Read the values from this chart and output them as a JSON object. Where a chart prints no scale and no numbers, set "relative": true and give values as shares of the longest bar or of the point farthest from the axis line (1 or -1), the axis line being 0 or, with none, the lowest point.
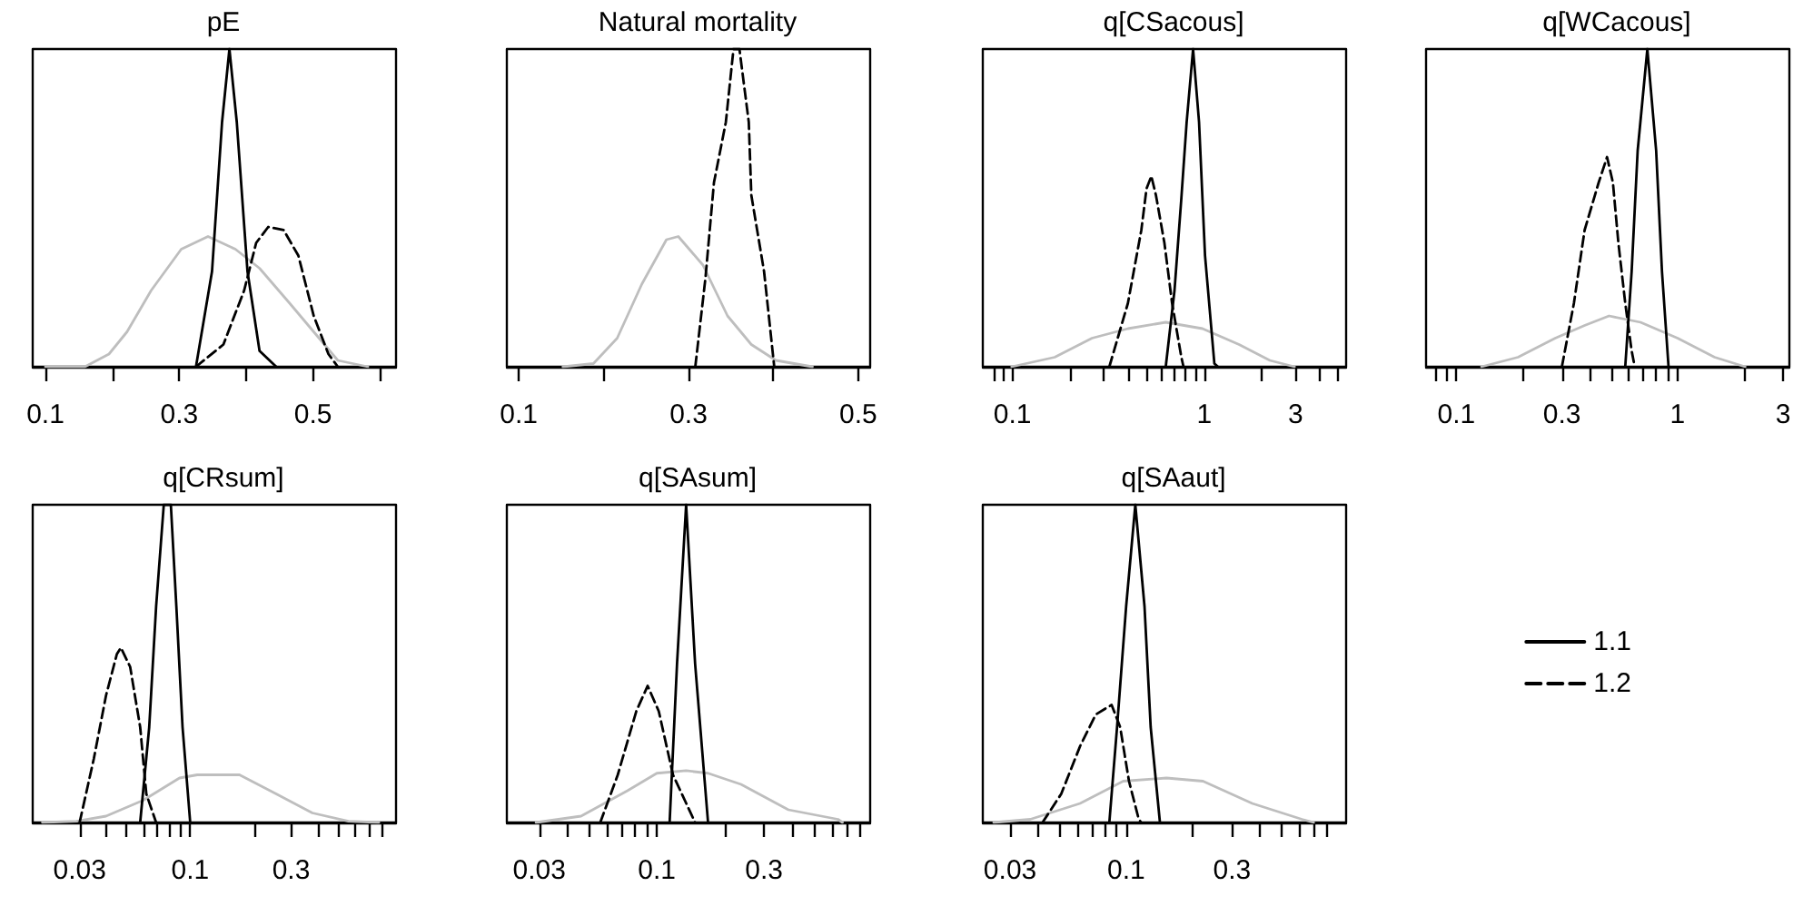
{
  "chart_data": [
    {
      "type": "line",
      "title": "pE",
      "relative": true,
      "tick_labels": "x",
      "xlim": [
        0.081,
        0.624
      ],
      "xticks": [
        0.1,
        {
          "value": 0.2,
          "label": null
        },
        0.3,
        {
          "value": 0.4,
          "label": null
        },
        0.5,
        {
          "value": 0.6,
          "label": null
        }
      ],
      "series": [
        {
          "color": "#bebebe",
          "line_style": "solid",
          "x": [
            0.1,
            0.159,
            0.195,
            0.222,
            0.258,
            0.303,
            0.343,
            0.384,
            0.42,
            0.465,
            0.501,
            0.537,
            0.582
          ],
          "values": [
            0,
            0,
            0.04,
            0.11,
            0.24,
            0.37,
            0.41,
            0.37,
            0.31,
            0.2,
            0.11,
            0.02,
            0
          ]
        },
        {
          "color": "#000000",
          "line_style": "solid",
          "x": [
            0.325,
            0.349,
            0.364,
            0.375,
            0.386,
            0.402,
            0.42,
            0.445
          ],
          "values": [
            0,
            0.3,
            0.77,
            1,
            0.77,
            0.3,
            0.05,
            0
          ]
        },
        {
          "color": "#000000",
          "line_style": "dashed",
          "x": [
            0.325,
            0.366,
            0.397,
            0.415,
            0.433,
            0.456,
            0.478,
            0.501,
            0.523,
            0.537
          ],
          "values": [
            0,
            0.07,
            0.24,
            0.39,
            0.44,
            0.43,
            0.35,
            0.16,
            0.04,
            0
          ]
        }
      ]
    },
    {
      "type": "line",
      "title": "Natural mortality",
      "relative": true,
      "tick_labels": "x",
      "xlim": [
        0.086,
        0.514
      ],
      "xticks": [
        0.1,
        {
          "value": 0.2,
          "label": null
        },
        0.3,
        {
          "value": 0.4,
          "label": null
        },
        0.5
      ],
      "series": [
        {
          "color": "#bebebe",
          "line_style": "solid",
          "x": [
            0.152,
            0.188,
            0.216,
            0.245,
            0.274,
            0.288,
            0.317,
            0.346,
            0.374,
            0.403,
            0.446
          ],
          "values": [
            0,
            0.01,
            0.09,
            0.26,
            0.4,
            0.41,
            0.32,
            0.16,
            0.07,
            0.02,
            0
          ]
        },
        {
          "color": "#000000",
          "line_style": "dashed",
          "x": [
            0.308,
            0.32,
            0.33,
            0.344,
            0.353,
            0.36,
            0.371,
            0.374,
            0.389,
            0.401
          ],
          "values": [
            0,
            0.28,
            0.58,
            0.77,
            1,
            1,
            0.77,
            0.54,
            0.3,
            0
          ]
        }
      ]
    },
    {
      "type": "line",
      "title": "q[CSacous]",
      "relative": true,
      "log": "x",
      "tick_labels": "x",
      "xlim": [
        0.07,
        5.5
      ],
      "xticks": [
        {
          "value": 0.08,
          "label": null
        },
        {
          "value": 0.09,
          "label": null
        },
        0.1,
        {
          "value": 0.2,
          "label": null
        },
        {
          "value": 0.3,
          "label": null
        },
        {
          "value": 0.4,
          "label": null
        },
        {
          "value": 0.5,
          "label": null
        },
        {
          "value": 0.6,
          "label": null
        },
        {
          "value": 0.7,
          "label": null
        },
        {
          "value": 0.8,
          "label": null
        },
        {
          "value": 0.9,
          "label": null
        },
        1,
        {
          "value": 2,
          "label": null
        },
        3,
        {
          "value": 4,
          "label": null
        },
        {
          "value": 5,
          "label": null
        }
      ],
      "series": [
        {
          "color": "#bebebe",
          "line_style": "solid",
          "x": [
            0.099,
            0.166,
            0.26,
            0.4,
            0.63,
            0.98,
            1.52,
            2.2,
            2.96
          ],
          "values": [
            0,
            0.03,
            0.09,
            0.12,
            0.14,
            0.12,
            0.07,
            0.02,
            0
          ]
        },
        {
          "color": "#000000",
          "line_style": "solid",
          "x": [
            0.63,
            0.7,
            0.76,
            0.81,
            0.875,
            0.94,
            1.01,
            1.13,
            1.18
          ],
          "values": [
            0,
            0.24,
            0.53,
            0.77,
            1,
            0.77,
            0.35,
            0.01,
            0
          ]
        },
        {
          "color": "#000000",
          "line_style": "dashed",
          "x": [
            0.32,
            0.4,
            0.47,
            0.5,
            0.53,
            0.56,
            0.62,
            0.68,
            0.76,
            0.78
          ],
          "values": [
            0,
            0.2,
            0.43,
            0.56,
            0.6,
            0.54,
            0.39,
            0.2,
            0.03,
            0
          ]
        }
      ]
    },
    {
      "type": "line",
      "title": "q[WCacous]",
      "relative": true,
      "log": "x",
      "tick_labels": "x",
      "xlim": [
        0.073,
        3.2
      ],
      "xticks": [
        {
          "value": 0.08,
          "label": null
        },
        {
          "value": 0.09,
          "label": null
        },
        0.1,
        {
          "value": 0.2,
          "label": null
        },
        0.3,
        {
          "value": 0.4,
          "label": null
        },
        {
          "value": 0.5,
          "label": null
        },
        {
          "value": 0.6,
          "label": null
        },
        {
          "value": 0.7,
          "label": null
        },
        {
          "value": 0.8,
          "label": null
        },
        {
          "value": 0.9,
          "label": null
        },
        1,
        {
          "value": 2,
          "label": null
        },
        3
      ],
      "series": [
        {
          "color": "#bebebe",
          "line_style": "solid",
          "x": [
            0.13,
            0.19,
            0.28,
            0.38,
            0.49,
            0.68,
            1.0,
            1.47,
            2.02
          ],
          "values": [
            0,
            0.03,
            0.09,
            0.13,
            0.16,
            0.14,
            0.09,
            0.03,
            0
          ]
        },
        {
          "color": "#000000",
          "line_style": "solid",
          "x": [
            0.58,
            0.62,
            0.66,
            0.73,
            0.8,
            0.85,
            0.91
          ],
          "values": [
            0,
            0.3,
            0.68,
            1,
            0.68,
            0.3,
            0
          ]
        },
        {
          "color": "#000000",
          "line_style": "dashed",
          "x": [
            0.3,
            0.34,
            0.38,
            0.44,
            0.48,
            0.51,
            0.54,
            0.58,
            0.62,
            0.64
          ],
          "values": [
            0,
            0.2,
            0.43,
            0.58,
            0.66,
            0.58,
            0.39,
            0.2,
            0.05,
            0
          ]
        }
      ]
    },
    {
      "type": "line",
      "title": "q[CRsum]",
      "relative": true,
      "log": "x",
      "tick_labels": "x",
      "xlim": [
        0.018,
        0.94
      ],
      "xticks": [
        0.03,
        {
          "value": 0.04,
          "label": null
        },
        {
          "value": 0.05,
          "label": null
        },
        {
          "value": 0.06,
          "label": null
        },
        {
          "value": 0.07,
          "label": null
        },
        {
          "value": 0.08,
          "label": null
        },
        {
          "value": 0.09,
          "label": null
        },
        0.1,
        {
          "value": 0.2,
          "label": null
        },
        0.3,
        {
          "value": 0.4,
          "label": null
        },
        {
          "value": 0.5,
          "label": null
        },
        {
          "value": 0.6,
          "label": null
        },
        {
          "value": 0.7,
          "label": null
        },
        {
          "value": 0.8,
          "label": null
        }
      ],
      "series": [
        {
          "color": "#bebebe",
          "line_style": "solid",
          "x": [
            0.02,
            0.029,
            0.04,
            0.06,
            0.089,
            0.108,
            0.171,
            0.255,
            0.378,
            0.56,
            0.78
          ],
          "values": [
            0,
            0.004,
            0.02,
            0.07,
            0.14,
            0.15,
            0.15,
            0.09,
            0.03,
            0.004,
            0
          ]
        },
        {
          "color": "#000000",
          "line_style": "solid",
          "x": [
            0.058,
            0.064,
            0.069,
            0.075,
            0.081,
            0.086,
            0.092,
            0.1
          ],
          "values": [
            0,
            0.3,
            0.68,
            1,
            1,
            0.68,
            0.3,
            0
          ]
        },
        {
          "color": "#000000",
          "line_style": "dashed",
          "x": [
            0.03,
            0.035,
            0.04,
            0.045,
            0.047,
            0.052,
            0.058,
            0.062,
            0.069
          ],
          "values": [
            0,
            0.2,
            0.4,
            0.53,
            0.55,
            0.49,
            0.3,
            0.09,
            0
          ]
        }
      ]
    },
    {
      "type": "line",
      "title": "q[SAsum]",
      "relative": true,
      "log": "x",
      "tick_labels": "x",
      "xlim": [
        0.0215,
        0.89
      ],
      "xticks": [
        0.03,
        {
          "value": 0.04,
          "label": null
        },
        {
          "value": 0.05,
          "label": null
        },
        {
          "value": 0.06,
          "label": null
        },
        {
          "value": 0.07,
          "label": null
        },
        {
          "value": 0.08,
          "label": null
        },
        {
          "value": 0.09,
          "label": null
        },
        0.1,
        {
          "value": 0.2,
          "label": null
        },
        0.3,
        {
          "value": 0.4,
          "label": null
        },
        {
          "value": 0.5,
          "label": null
        },
        {
          "value": 0.6,
          "label": null
        },
        {
          "value": 0.7,
          "label": null
        },
        {
          "value": 0.8,
          "label": null
        }
      ],
      "series": [
        {
          "color": "#bebebe",
          "line_style": "solid",
          "x": [
            0.029,
            0.046,
            0.074,
            0.1,
            0.135,
            0.169,
            0.237,
            0.385,
            0.64,
            0.67
          ],
          "values": [
            0,
            0.02,
            0.1,
            0.155,
            0.163,
            0.155,
            0.12,
            0.04,
            0.01,
            0
          ]
        },
        {
          "color": "#000000",
          "line_style": "solid",
          "x": [
            0.114,
            0.123,
            0.135,
            0.148,
            0.169
          ],
          "values": [
            0,
            0.5,
            1,
            0.5,
            0
          ]
        },
        {
          "color": "#000000",
          "line_style": "dashed",
          "x": [
            0.056,
            0.067,
            0.081,
            0.091,
            0.102,
            0.118,
            0.148
          ],
          "values": [
            0,
            0.15,
            0.35,
            0.43,
            0.35,
            0.15,
            0
          ]
        }
      ]
    },
    {
      "type": "line",
      "title": "q[SAaut]",
      "relative": true,
      "log": "x",
      "tick_labels": "x",
      "legend": "right",
      "xlim": [
        0.0226,
        0.98
      ],
      "xticks": [
        0.03,
        {
          "value": 0.04,
          "label": null
        },
        {
          "value": 0.05,
          "label": null
        },
        {
          "value": 0.06,
          "label": null
        },
        {
          "value": 0.07,
          "label": null
        },
        {
          "value": 0.08,
          "label": null
        },
        {
          "value": 0.09,
          "label": null
        },
        0.1,
        {
          "value": 0.2,
          "label": null
        },
        0.3,
        {
          "value": 0.4,
          "label": null
        },
        {
          "value": 0.5,
          "label": null
        },
        {
          "value": 0.6,
          "label": null
        },
        {
          "value": 0.7,
          "label": null
        },
        {
          "value": 0.8,
          "label": null
        }
      ],
      "series": [
        {
          "color": "#bebebe",
          "line_style": "solid",
          "x": [
            0.0253,
            0.037,
            0.062,
            0.097,
            0.152,
            0.222,
            0.37,
            0.62,
            0.7
          ],
          "values": [
            0,
            0.01,
            0.06,
            0.13,
            0.14,
            0.13,
            0.06,
            0.01,
            0
          ]
        },
        {
          "name": "1.1",
          "color": "#000000",
          "line_style": "solid",
          "x": [
            0.084,
            0.091,
            0.1,
            0.11,
            0.121,
            0.129,
            0.142
          ],
          "values": [
            0,
            0.3,
            0.68,
            1,
            0.68,
            0.3,
            0
          ]
        },
        {
          "name": "1.2",
          "color": "#000000",
          "line_style": "dashed",
          "x": [
            0.042,
            0.051,
            0.062,
            0.073,
            0.086,
            0.094,
            0.103,
            0.114,
            0.117
          ],
          "values": [
            0,
            0.09,
            0.24,
            0.34,
            0.37,
            0.3,
            0.13,
            0.01,
            0
          ]
        }
      ]
    }
  ]
}
